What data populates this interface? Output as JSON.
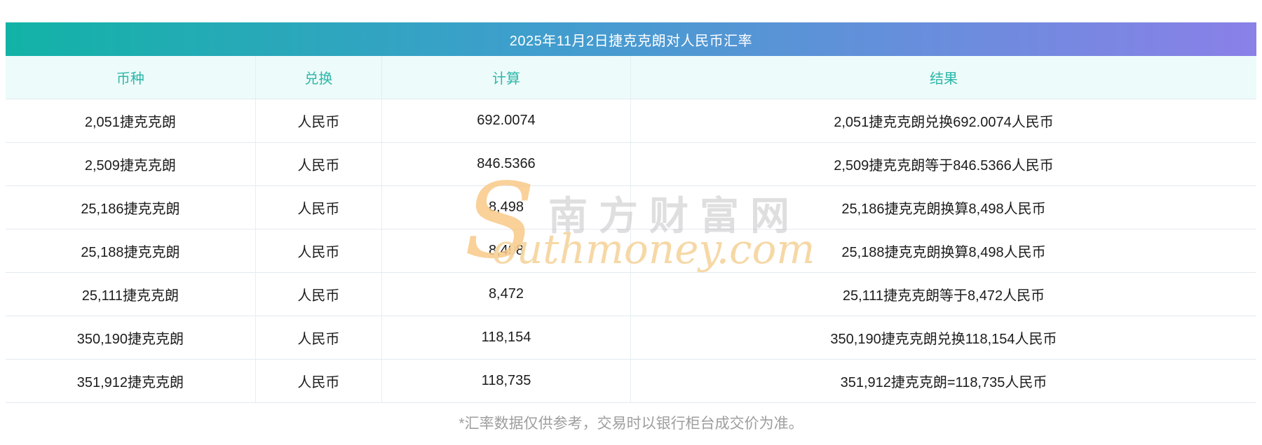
{
  "title": "2025年11月2日捷克克朗对人民币汇率",
  "columns": [
    "币种",
    "兑换",
    "计算",
    "结果"
  ],
  "rows": [
    {
      "currency": "2,051捷克克朗",
      "exchange": "人民币",
      "calc": "692.0074",
      "result": "2,051捷克克朗兑换692.0074人民币"
    },
    {
      "currency": "2,509捷克克朗",
      "exchange": "人民币",
      "calc": "846.5366",
      "result": "2,509捷克克朗等于846.5366人民币"
    },
    {
      "currency": "25,186捷克克朗",
      "exchange": "人民币",
      "calc": "8,498",
      "result": "25,186捷克克朗换算8,498人民币"
    },
    {
      "currency": "25,188捷克克朗",
      "exchange": "人民币",
      "calc": "8,498",
      "result": "25,188捷克克朗换算8,498人民币"
    },
    {
      "currency": "25,111捷克克朗",
      "exchange": "人民币",
      "calc": "8,472",
      "result": "25,111捷克克朗等于8,472人民币"
    },
    {
      "currency": "350,190捷克克朗",
      "exchange": "人民币",
      "calc": "118,154",
      "result": "350,190捷克克朗兑换118,154人民币"
    },
    {
      "currency": "351,912捷克克朗",
      "exchange": "人民币",
      "calc": "118,735",
      "result": "351,912捷克克朗=118,735人民币"
    }
  ],
  "watermark": {
    "s": "S",
    "cn": "南方财富网",
    "en": "outhmoney.com"
  },
  "footnote": "*汇率数据仅供参考，交易时以银行柜台成交价为准。",
  "colors": {
    "title_gradient_start": "#12b3a6",
    "title_gradient_mid": "#3f9ecd",
    "title_gradient_end": "#8a80e8",
    "title_text": "#ffffff",
    "header_row_bg": "#edfbfa",
    "header_row_text": "#2db7a9",
    "row_border": "#e2eaf1",
    "body_text": "#1c1c1c",
    "footnote_text": "#9e9e9e",
    "watermark_orange": "#f8c988",
    "watermark_gray": "#b9b9b9"
  }
}
